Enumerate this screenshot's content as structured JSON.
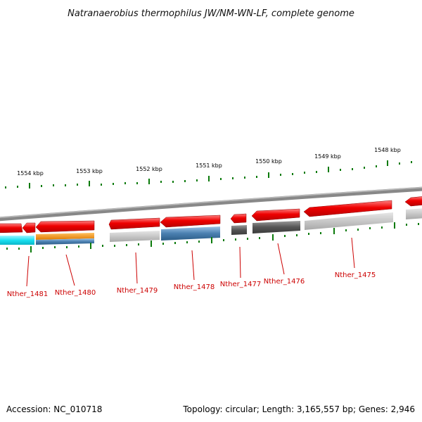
{
  "title": "Natranaerobius thermophilus JW/NM-WN-LF, complete genome",
  "footer": {
    "accession": "Accession: NC_010718",
    "summary": "Topology: circular; Length: 3,165,557 bp; Genes: 2,946"
  },
  "colors": {
    "cds_red": "#e60000",
    "backbone": "#777777",
    "tick_green": "#0a7a0a",
    "label_red": "#cc0000",
    "cyan": "#22e0f0",
    "orange": "#f08c00",
    "steel_blue": "#4a7fb0",
    "light_gray": "#b8b8b8",
    "dark_gray": "#5a5a5a"
  },
  "scale_labels": [
    "1554 kbp",
    "1553 kbp",
    "1552 kbp",
    "1551 kbp",
    "1550 kbp",
    "1549 kbp",
    "1548 kbp"
  ],
  "genes": [
    {
      "id": "Nther_1481",
      "second_track": "cyan"
    },
    {
      "id": "Nther_1480",
      "second_track": "orange/steel_blue"
    },
    {
      "id": "Nther_1479",
      "second_track": "light_gray"
    },
    {
      "id": "Nther_1478",
      "second_track": "steel_blue"
    },
    {
      "id": "Nther_1477",
      "second_track": "dark_gray"
    },
    {
      "id": "Nther_1476",
      "second_track": "dark_gray"
    },
    {
      "id": "Nther_1475",
      "second_track": "light_gray"
    }
  ]
}
